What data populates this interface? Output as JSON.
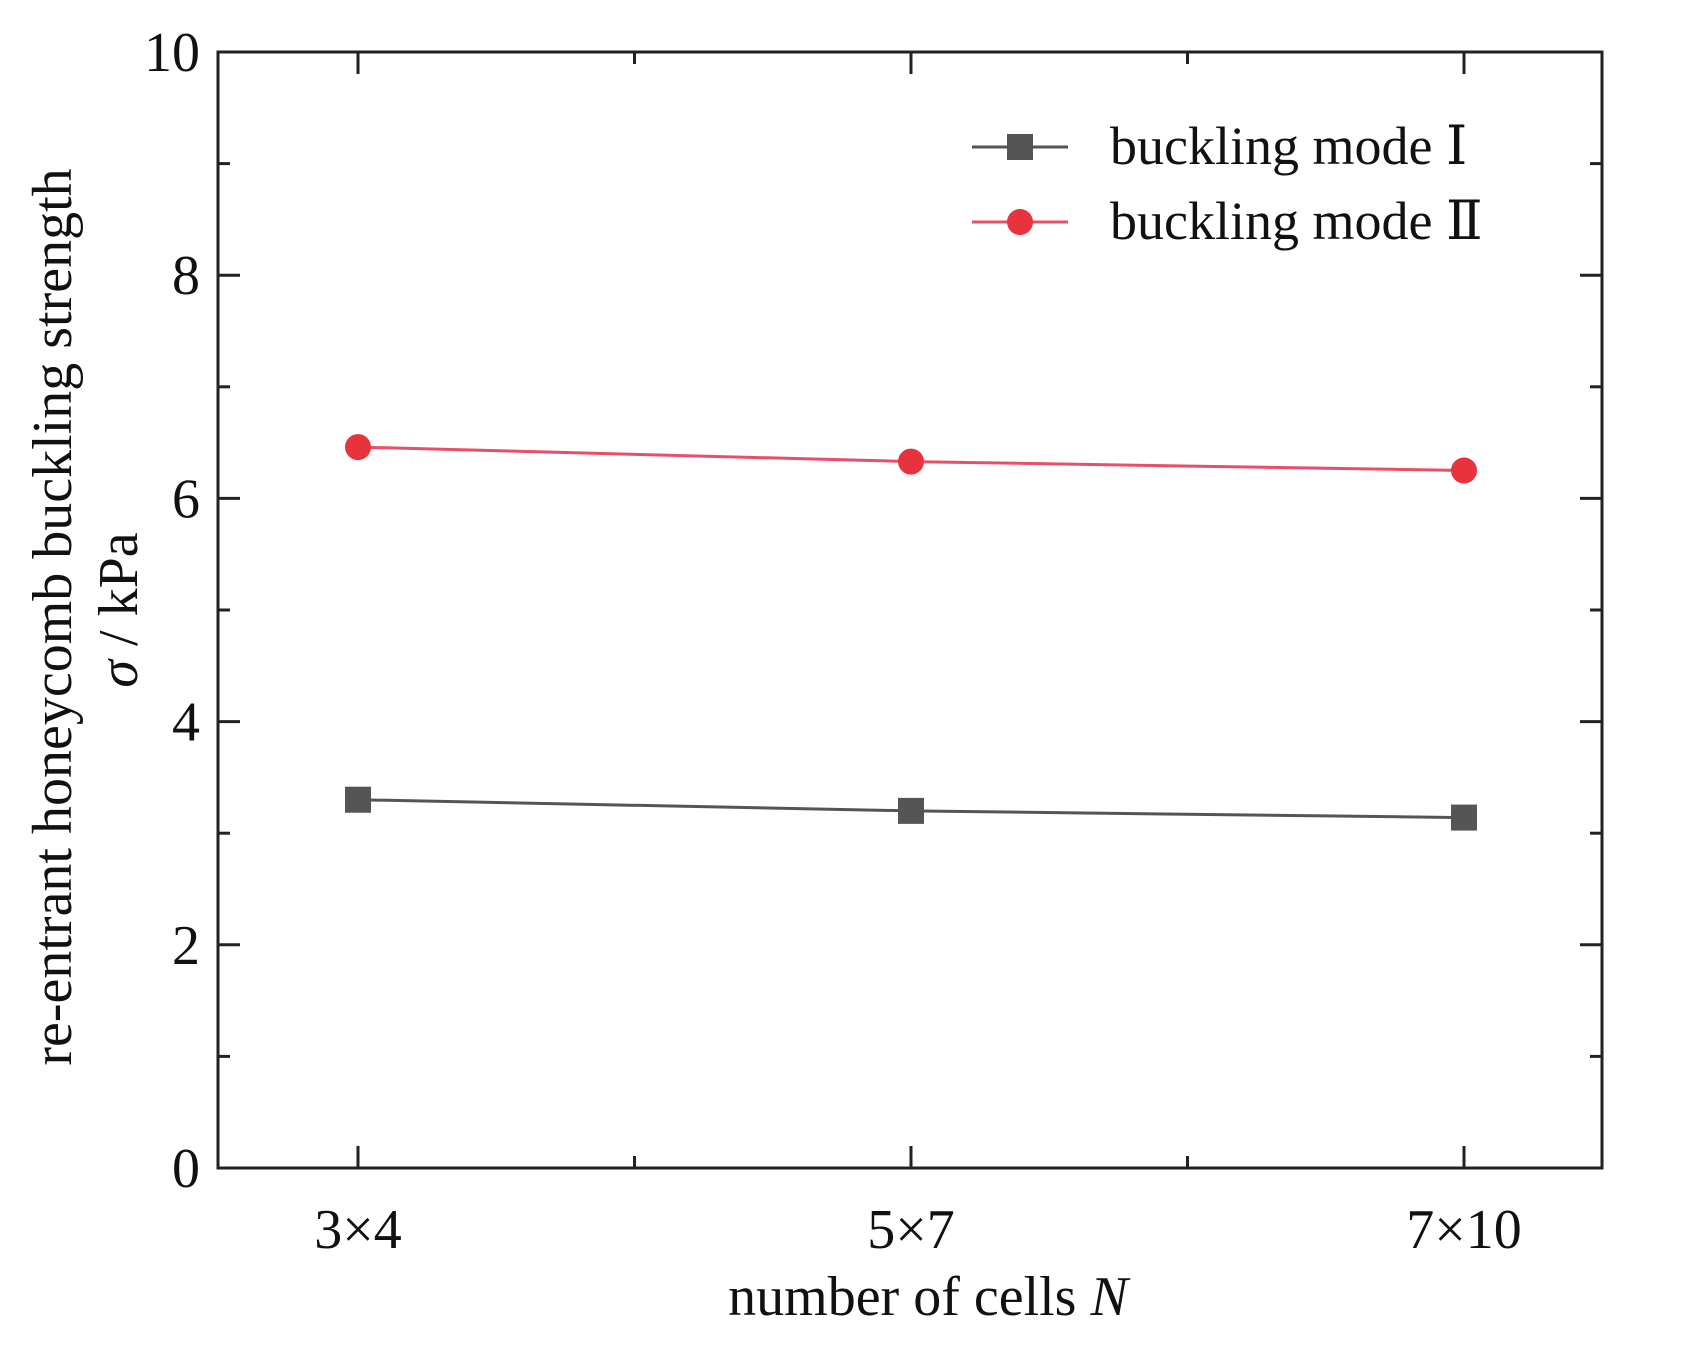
{
  "chart_data": {
    "type": "line",
    "categories": [
      "3×4",
      "5×7",
      "7×10"
    ],
    "series": [
      {
        "name": "buckling mode Ⅰ",
        "values": [
          3.3,
          3.2,
          3.14
        ],
        "color": "#555555",
        "marker": "square"
      },
      {
        "name": "buckling mode Ⅱ",
        "values": [
          6.46,
          6.33,
          6.25
        ],
        "color": "#e8323c",
        "line_color": "#e8506a",
        "marker": "circle"
      }
    ],
    "xlabel": {
      "text": "number of cells ",
      "italic_symbol": "N"
    },
    "ylabel": {
      "line1": "re-entrant honeycomb  buckling strength",
      "line2_symbol": "σ",
      "line2_rest": " / kPa"
    },
    "ylim": [
      0,
      10
    ],
    "yticks": [
      "0",
      "2",
      "4",
      "6",
      "8",
      "10"
    ],
    "grid": false,
    "legend_position": "top-right"
  }
}
